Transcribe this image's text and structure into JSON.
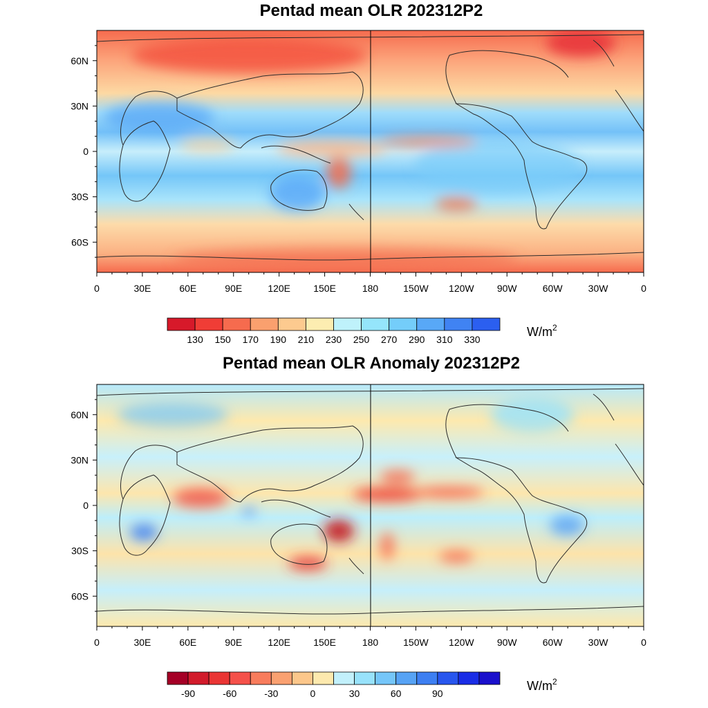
{
  "panels": [
    {
      "title": "Pentad mean OLR 202312P2",
      "lat_labels": [
        "60N",
        "30N",
        "0",
        "30S",
        "60S"
      ],
      "lat_values": [
        60,
        30,
        0,
        -30,
        -60
      ],
      "lon_labels": [
        "0",
        "30E",
        "60E",
        "90E",
        "120E",
        "150E",
        "180",
        "150W",
        "120W",
        "90W",
        "60W",
        "30W",
        "0"
      ],
      "colorbar": {
        "colors": [
          "#d7192a",
          "#f03d36",
          "#f66b4e",
          "#faa06e",
          "#fdca8f",
          "#fdedb1",
          "#bff2fb",
          "#95e5fb",
          "#74cdfa",
          "#58a8f7",
          "#4083f3",
          "#2b5ff0"
        ],
        "labels": [
          "130",
          "150",
          "170",
          "190",
          "210",
          "230",
          "250",
          "270",
          "290",
          "310",
          "330"
        ],
        "unit": "W/m",
        "unit_sup": "2"
      }
    },
    {
      "title": "Pentad mean OLR Anomaly 202312P2",
      "lat_labels": [
        "60N",
        "30N",
        "0",
        "30S",
        "60S"
      ],
      "lat_values": [
        60,
        30,
        0,
        -30,
        -60
      ],
      "lon_labels": [
        "0",
        "30E",
        "60E",
        "90E",
        "120E",
        "150E",
        "180",
        "150W",
        "120W",
        "90W",
        "60W",
        "30W",
        "0"
      ],
      "colorbar": {
        "colors": [
          "#a50026",
          "#d21b2b",
          "#ea3534",
          "#f5514a",
          "#f87c5c",
          "#faa171",
          "#fcc78b",
          "#fde9ae",
          "#c2f0fb",
          "#98e2fb",
          "#75c6f9",
          "#57a3f5",
          "#3d7ff2",
          "#2856ee",
          "#1a2de6",
          "#1a10cc"
        ],
        "labels": [
          "-90",
          "-60",
          "-30",
          "0",
          "30",
          "60",
          "90"
        ],
        "label_slots": [
          1,
          3,
          5,
          7,
          9,
          11,
          13
        ],
        "unit": "W/m",
        "unit_sup": "2"
      }
    }
  ]
}
